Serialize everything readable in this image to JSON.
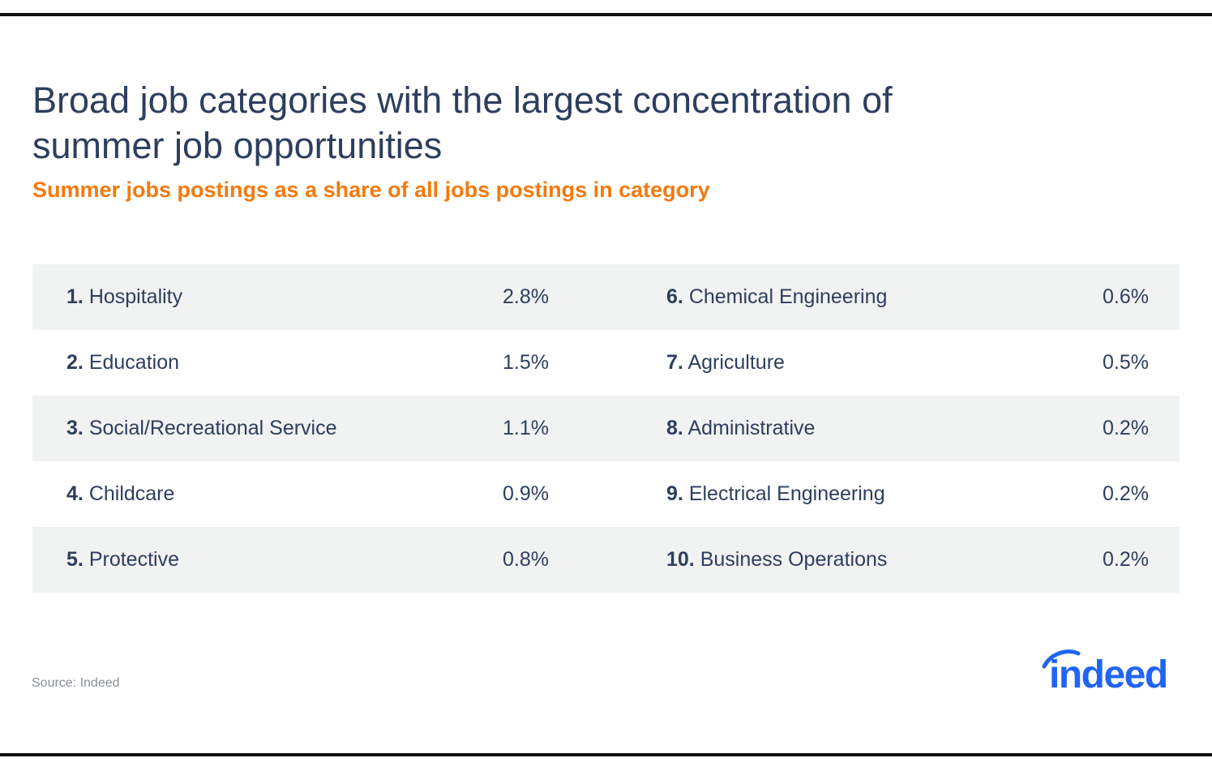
{
  "title": "Broad job categories with the largest concentration of summer job opportunities",
  "subtitle": "Summer jobs postings as a share of all jobs postings in category",
  "source": "Source: Indeed",
  "logo_text": "indeed",
  "colors": {
    "title": "#2d3e5e",
    "subtitle": "#f5790f",
    "row_shade": "#f1f2f2",
    "logo": "#2164f3"
  },
  "chart_data": {
    "type": "table",
    "title": "Broad job categories with the largest concentration of summer job opportunities",
    "subtitle": "Summer jobs postings as a share of all jobs postings in category",
    "rows": [
      {
        "rank": "1.",
        "category": "Hospitality",
        "share": "2.8%"
      },
      {
        "rank": "2.",
        "category": "Education",
        "share": "1.5%"
      },
      {
        "rank": "3.",
        "category": "Social/Recreational Service",
        "share": "1.1%"
      },
      {
        "rank": "4.",
        "category": "Childcare",
        "share": "0.9%"
      },
      {
        "rank": "5.",
        "category": "Protective",
        "share": "0.8%"
      },
      {
        "rank": "6.",
        "category": "Chemical Engineering",
        "share": "0.6%"
      },
      {
        "rank": "7.",
        "category": "Agriculture",
        "share": "0.5%"
      },
      {
        "rank": "8.",
        "category": "Administrative",
        "share": "0.2%"
      },
      {
        "rank": "9.",
        "category": "Electrical Engineering",
        "share": "0.2%"
      },
      {
        "rank": "10.",
        "category": "Business Operations",
        "share": "0.2%"
      }
    ]
  }
}
